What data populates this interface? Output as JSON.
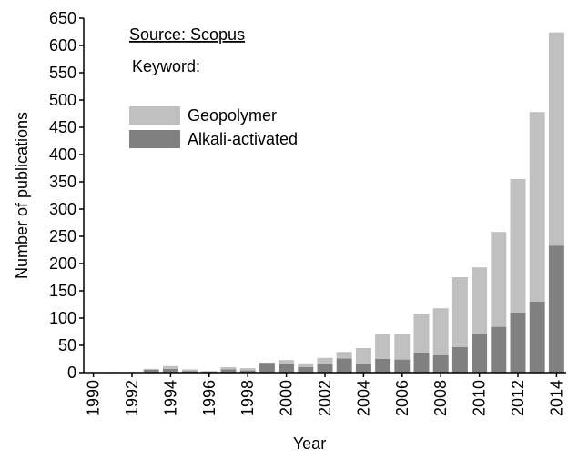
{
  "chart_data": {
    "type": "bar",
    "stacked": true,
    "xlabel": "Year",
    "ylabel": "Number of publications",
    "annotations": [
      "Source: Scopus",
      "Keyword:"
    ],
    "x": [
      1990,
      1991,
      1992,
      1993,
      1994,
      1995,
      1996,
      1997,
      1998,
      1999,
      2000,
      2001,
      2002,
      2003,
      2004,
      2005,
      2006,
      2007,
      2008,
      2009,
      2010,
      2011,
      2012,
      2013,
      2014
    ],
    "series": [
      {
        "name": "Alkali-activated",
        "color": "#808080",
        "values": [
          0,
          1,
          0,
          5,
          7,
          3,
          2,
          6,
          4,
          18,
          15,
          10,
          16,
          26,
          17,
          25,
          24,
          37,
          32,
          47,
          70,
          84,
          110,
          130,
          233
        ]
      },
      {
        "name": "Geopolymer",
        "color": "#c0c0c0",
        "values": [
          0,
          0,
          1,
          2,
          5,
          3,
          1,
          4,
          4,
          0,
          8,
          7,
          11,
          12,
          28,
          45,
          46,
          71,
          86,
          128,
          123,
          174,
          245,
          348,
          391
        ]
      }
    ],
    "xlim": [
      1989.5,
      2014.5
    ],
    "xticks": [
      1990,
      1992,
      1994,
      1996,
      1998,
      2000,
      2002,
      2004,
      2006,
      2008,
      2010,
      2012,
      2014
    ],
    "ylim": [
      0,
      650
    ],
    "yticks": [
      0,
      50,
      100,
      150,
      200,
      250,
      300,
      350,
      400,
      450,
      500,
      550,
      600,
      650
    ],
    "legend": "upper left"
  }
}
